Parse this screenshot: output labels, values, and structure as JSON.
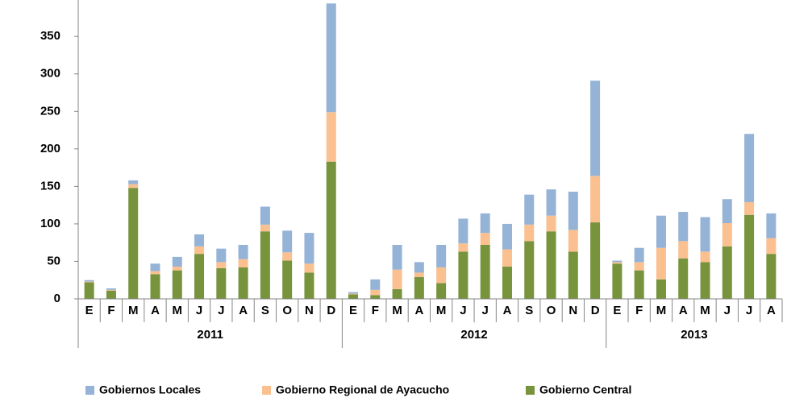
{
  "chart_data": {
    "type": "stacked_bar",
    "categories": [
      "E",
      "F",
      "M",
      "A",
      "M",
      "J",
      "J",
      "A",
      "S",
      "O",
      "N",
      "D",
      "E",
      "F",
      "M",
      "A",
      "M",
      "J",
      "J",
      "A",
      "S",
      "O",
      "N",
      "D",
      "E",
      "F",
      "M",
      "A",
      "M",
      "J",
      "J",
      "A"
    ],
    "year_groups": [
      "2011",
      "2012",
      "2013"
    ],
    "year_group_sizes": [
      12,
      12,
      8
    ],
    "series": [
      {
        "name": "Gobiernos Locales",
        "color": "#95b3d7",
        "values": [
          2,
          2,
          5,
          10,
          13,
          16,
          18,
          19,
          24,
          29,
          41,
          145,
          2,
          14,
          33,
          14,
          30,
          33,
          26,
          34,
          40,
          35,
          51,
          127,
          2,
          19,
          43,
          39,
          46,
          32,
          91,
          33
        ]
      },
      {
        "name": "Gobierno Regional de Ayacucho",
        "color": "#fac090",
        "values": [
          1,
          1,
          5,
          4,
          5,
          10,
          8,
          11,
          9,
          11,
          12,
          66,
          1,
          7,
          26,
          6,
          21,
          11,
          16,
          23,
          22,
          21,
          29,
          62,
          2,
          11,
          42,
          23,
          14,
          31,
          17,
          21
        ]
      },
      {
        "name": "Gobierno Central",
        "color": "#77933c",
        "values": [
          22,
          11,
          148,
          33,
          38,
          60,
          41,
          42,
          90,
          51,
          35,
          183,
          6,
          5,
          13,
          29,
          21,
          63,
          72,
          43,
          77,
          90,
          63,
          102,
          47,
          38,
          26,
          54,
          49,
          70,
          112,
          60
        ]
      }
    ],
    "ylim": [
      0,
      390
    ],
    "yticks": [
      0,
      50,
      100,
      150,
      200,
      250,
      300,
      350
    ]
  }
}
